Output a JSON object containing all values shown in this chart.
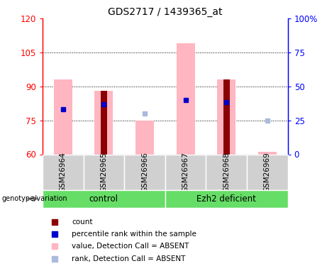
{
  "title": "GDS2717 / 1439365_at",
  "samples": [
    "GSM26964",
    "GSM26965",
    "GSM26966",
    "GSM26967",
    "GSM26968",
    "GSM26969"
  ],
  "ylim_left": [
    60,
    120
  ],
  "ylim_right": [
    0,
    100
  ],
  "yticks_left": [
    60,
    75,
    90,
    105,
    120
  ],
  "yticks_right": [
    0,
    25,
    50,
    75,
    100
  ],
  "ytick_labels_right": [
    "0",
    "25",
    "50",
    "75",
    "100%"
  ],
  "pink_bar_tops": [
    93,
    88,
    75,
    109,
    93,
    61
  ],
  "dark_red_bar_tops": [
    0,
    88,
    0,
    0,
    93,
    0
  ],
  "blue_square_y": [
    80,
    82,
    null,
    84,
    83,
    null
  ],
  "light_blue_square_y": [
    null,
    null,
    78,
    null,
    null,
    75
  ],
  "pink_color": "#FFB6C1",
  "dark_red_color": "#8B0000",
  "blue_color": "#0000CC",
  "light_blue_color": "#AABBDD",
  "grey_color": "#D0D0D0",
  "green_color": "#66DD66",
  "control_indices": [
    0,
    1,
    2
  ],
  "ezh2_indices": [
    3,
    4,
    5
  ],
  "legend_items": [
    {
      "label": "count",
      "color": "#8B0000"
    },
    {
      "label": "percentile rank within the sample",
      "color": "#0000CC"
    },
    {
      "label": "value, Detection Call = ABSENT",
      "color": "#FFB6C1"
    },
    {
      "label": "rank, Detection Call = ABSENT",
      "color": "#AABBDD"
    }
  ]
}
